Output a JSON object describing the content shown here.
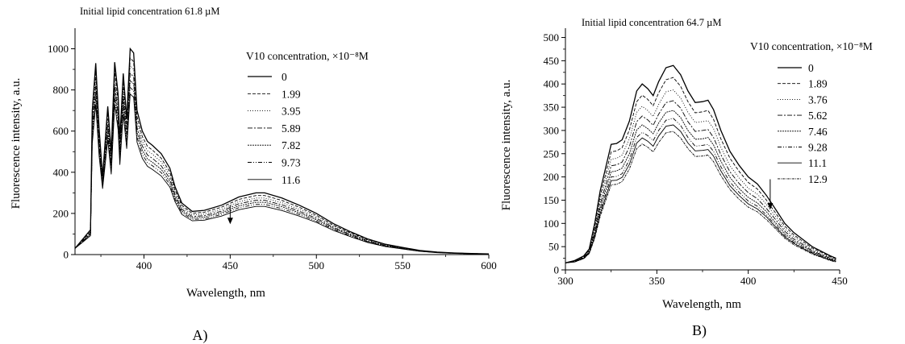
{
  "chart_data": [
    {
      "type": "line",
      "panel_label": "A)",
      "title": "Initial lipid concentration 61.8 µM",
      "xlabel": "Wavelength, nm",
      "ylabel": "Fluorescence intensity, a.u.",
      "xlim": [
        360,
        600
      ],
      "ylim": [
        0,
        1100
      ],
      "xticks": [
        400,
        450,
        500,
        550,
        600
      ],
      "yticks": [
        0,
        200,
        400,
        600,
        800,
        1000
      ],
      "grid": false,
      "legend_title": "V10 concentration, ×10⁻⁸M",
      "legend_position": "top-right",
      "arrow": {
        "x": 450,
        "y_from": 240,
        "y_to": 148
      },
      "x": [
        360,
        365,
        369,
        370,
        372,
        374,
        376,
        379,
        381,
        383,
        385,
        386,
        388,
        390,
        392,
        394,
        396,
        399,
        402,
        405,
        410,
        415,
        418,
        422,
        428,
        435,
        445,
        455,
        465,
        470,
        480,
        490,
        500,
        510,
        520,
        530,
        540,
        550,
        560,
        570,
        580,
        590,
        600
      ],
      "series": [
        {
          "name": "0",
          "dash": "",
          "values": [
            30,
            80,
            120,
            700,
            930,
            610,
            380,
            720,
            500,
            935,
            780,
            560,
            880,
            660,
            1000,
            980,
            700,
            600,
            550,
            530,
            490,
            420,
            330,
            250,
            210,
            215,
            240,
            280,
            300,
            300,
            275,
            240,
            200,
            150,
            110,
            75,
            50,
            35,
            20,
            12,
            8,
            5,
            3
          ]
        },
        {
          "name": "1.99",
          "dash": "4,2",
          "values": [
            30,
            75,
            112,
            670,
            890,
            585,
            370,
            690,
            480,
            895,
            746,
            535,
            841,
            631,
            956,
            937,
            670,
            574,
            526,
            507,
            468,
            402,
            315,
            239,
            201,
            206,
            230,
            268,
            287,
            287,
            263,
            230,
            191,
            143,
            105,
            72,
            48,
            33,
            19,
            11,
            8,
            5,
            3
          ]
        },
        {
          "name": "3.95",
          "dash": "1,2",
          "values": [
            30,
            72,
            108,
            640,
            855,
            560,
            360,
            660,
            460,
            860,
            716,
            514,
            808,
            606,
            918,
            900,
            643,
            551,
            505,
            487,
            450,
            386,
            303,
            230,
            193,
            197,
            220,
            257,
            275,
            275,
            252,
            220,
            184,
            138,
            101,
            69,
            46,
            32,
            18,
            11,
            7,
            5,
            3
          ]
        },
        {
          "name": "5.89",
          "dash": "6,2,2,2",
          "values": [
            30,
            70,
            104,
            615,
            820,
            537,
            350,
            632,
            442,
            825,
            686,
            492,
            775,
            581,
            881,
            863,
            617,
            528,
            484,
            467,
            431,
            370,
            290,
            220,
            185,
            189,
            211,
            247,
            264,
            264,
            242,
            211,
            176,
            132,
            97,
            66,
            44,
            31,
            18,
            11,
            7,
            4,
            3
          ]
        },
        {
          "name": "7.82",
          "dash": "2,1",
          "values": [
            30,
            68,
            100,
            590,
            790,
            517,
            340,
            606,
            424,
            792,
            659,
            473,
            744,
            558,
            846,
            829,
            592,
            507,
            465,
            448,
            414,
            355,
            279,
            211,
            178,
            182,
            203,
            237,
            254,
            254,
            233,
            203,
            169,
            127,
            93,
            63,
            42,
            30,
            17,
            10,
            7,
            4,
            3
          ]
        },
        {
          "name": "9.73",
          "dash": "5,2,1,2,1,2",
          "values": [
            30,
            66,
            96,
            565,
            760,
            497,
            330,
            582,
            407,
            761,
            633,
            454,
            715,
            536,
            812,
            796,
            569,
            487,
            447,
            431,
            398,
            341,
            268,
            203,
            171,
            174,
            195,
            228,
            244,
            244,
            223,
            195,
            162,
            122,
            89,
            61,
            41,
            28,
            16,
            10,
            6,
            4,
            2
          ]
        },
        {
          "name": "11.6",
          "dash": "",
          "values": [
            30,
            64,
            92,
            540,
            730,
            478,
            320,
            558,
            390,
            730,
            607,
            436,
            686,
            514,
            780,
            764,
            546,
            468,
            429,
            413,
            382,
            328,
            257,
            195,
            164,
            167,
            187,
            218,
            234,
            234,
            214,
            187,
            156,
            117,
            86,
            58,
            39,
            27,
            16,
            9,
            6,
            4,
            2
          ]
        }
      ]
    },
    {
      "type": "line",
      "panel_label": "B)",
      "title": "Initial lipid concentration 64.7 µM",
      "xlabel": "Wavelength, nm",
      "ylabel": "Fluorescence intensity, a.u.",
      "xlim": [
        300,
        450
      ],
      "ylim": [
        0,
        520
      ],
      "xticks": [
        300,
        350,
        400,
        450
      ],
      "yticks": [
        0,
        50,
        100,
        150,
        200,
        250,
        300,
        350,
        400,
        450,
        500
      ],
      "grid": false,
      "legend_title": "V10 concentration, ×10⁻⁸M",
      "legend_position": "top-right",
      "arrow": {
        "x": 412,
        "y_from": 195,
        "y_to": 130
      },
      "x": [
        300,
        305,
        310,
        313,
        316,
        319,
        322,
        325,
        328,
        331,
        335,
        339,
        342,
        345,
        348,
        351,
        355,
        359,
        363,
        367,
        371,
        375,
        378,
        381,
        385,
        390,
        395,
        400,
        405,
        410,
        415,
        420,
        425,
        430,
        435,
        440,
        445,
        448
      ],
      "series": [
        {
          "name": "0",
          "dash": "",
          "values": [
            15,
            20,
            30,
            45,
            100,
            170,
            220,
            270,
            272,
            280,
            320,
            385,
            400,
            390,
            375,
            405,
            435,
            440,
            420,
            385,
            360,
            362,
            365,
            345,
            300,
            255,
            225,
            200,
            185,
            160,
            130,
            100,
            80,
            65,
            50,
            40,
            30,
            25
          ]
        },
        {
          "name": "1.89",
          "dash": "4,2",
          "values": [
            15,
            19,
            29,
            43,
            94,
            159,
            206,
            254,
            256,
            263,
            301,
            362,
            376,
            367,
            353,
            381,
            409,
            414,
            395,
            362,
            338,
            340,
            343,
            324,
            282,
            240,
            212,
            188,
            174,
            150,
            122,
            94,
            75,
            61,
            47,
            38,
            28,
            24
          ]
        },
        {
          "name": "3.76",
          "dash": "1,2",
          "values": [
            15,
            19,
            28,
            41,
            88,
            150,
            194,
            238,
            240,
            247,
            282,
            339,
            352,
            343,
            330,
            356,
            383,
            387,
            370,
            339,
            317,
            319,
            321,
            304,
            264,
            224,
            198,
            176,
            163,
            141,
            115,
            88,
            71,
            57,
            44,
            35,
            26,
            22
          ]
        },
        {
          "name": "5.62",
          "dash": "6,2,2,2",
          "values": [
            15,
            18,
            27,
            40,
            83,
            141,
            182,
            224,
            226,
            232,
            265,
            319,
            331,
            323,
            311,
            335,
            360,
            364,
            348,
            319,
            298,
            300,
            302,
            285,
            248,
            211,
            186,
            166,
            153,
            132,
            108,
            83,
            66,
            54,
            41,
            33,
            25,
            21
          ]
        },
        {
          "name": "7.46",
          "dash": "2,1",
          "values": [
            15,
            18,
            26,
            38,
            78,
            133,
            172,
            211,
            213,
            219,
            250,
            301,
            312,
            304,
            293,
            316,
            339,
            343,
            328,
            300,
            281,
            282,
            285,
            269,
            234,
            199,
            175,
            156,
            144,
            125,
            101,
            78,
            62,
            51,
            39,
            31,
            23,
            20
          ]
        },
        {
          "name": "9.28",
          "dash": "5,2,1,2,1,2",
          "values": [
            15,
            18,
            25,
            37,
            74,
            126,
            163,
            200,
            201,
            207,
            237,
            285,
            296,
            289,
            278,
            300,
            322,
            326,
            311,
            285,
            266,
            268,
            270,
            255,
            222,
            189,
            167,
            148,
            137,
            118,
            96,
            74,
            59,
            48,
            37,
            30,
            22,
            19
          ]
        },
        {
          "name": "11.1",
          "dash": "",
          "values": [
            15,
            17,
            25,
            36,
            71,
            121,
            156,
            192,
            193,
            199,
            227,
            273,
            284,
            277,
            266,
            288,
            309,
            312,
            298,
            273,
            256,
            257,
            259,
            245,
            213,
            181,
            160,
            142,
            131,
            114,
            92,
            71,
            57,
            46,
            36,
            28,
            21,
            18
          ]
        },
        {
          "name": "12.9",
          "dash": "3,1,1,1",
          "values": [
            15,
            17,
            24,
            35,
            68,
            115,
            149,
            183,
            184,
            190,
            217,
            261,
            271,
            264,
            254,
            274,
            295,
            298,
            284,
            261,
            244,
            245,
            247,
            233,
            203,
            173,
            152,
            135,
            125,
            108,
            88,
            68,
            54,
            44,
            34,
            27,
            20,
            17
          ]
        }
      ]
    }
  ]
}
